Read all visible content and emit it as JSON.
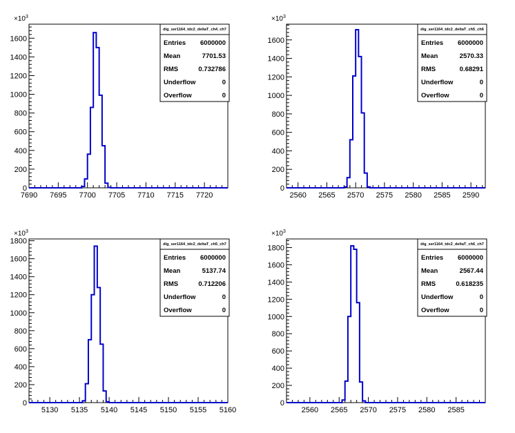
{
  "chart_data": [
    {
      "type": "bar",
      "title": "",
      "xlabel": "",
      "ylabel": "",
      "xlim": [
        7690,
        7724
      ],
      "xticks": [
        7690,
        7695,
        7700,
        7705,
        7710,
        7715,
        7720
      ],
      "ylim": [
        0,
        1750
      ],
      "yticks": [
        0,
        200,
        400,
        600,
        800,
        1000,
        1200,
        1400,
        1600
      ],
      "y_exponent": "3",
      "bin_width": 0.5,
      "bins": [
        7699.0,
        7699.5,
        7700.0,
        7700.5,
        7701.0,
        7701.5,
        7702.0,
        7702.5,
        7703.0,
        7703.5
      ],
      "values": [
        15,
        95,
        360,
        860,
        1660,
        1500,
        990,
        450,
        50,
        5
      ],
      "stats": {
        "name": "dig_ser1164_tdc2_deltaT_ch4_ch7",
        "rows": [
          {
            "label": "Entries",
            "value": "6000000"
          },
          {
            "label": "Mean",
            "value": "7701.53"
          },
          {
            "label": "RMS",
            "value": "0.732786"
          },
          {
            "label": "Underflow",
            "value": "0"
          },
          {
            "label": "Overflow",
            "value": "0"
          }
        ]
      }
    },
    {
      "type": "bar",
      "title": "",
      "xlabel": "",
      "ylabel": "",
      "xlim": [
        2558,
        2592.5
      ],
      "xticks": [
        2560,
        2565,
        2570,
        2575,
        2580,
        2585,
        2590
      ],
      "ylim": [
        0,
        1770
      ],
      "yticks": [
        0,
        200,
        400,
        600,
        800,
        1000,
        1200,
        1400,
        1600
      ],
      "y_exponent": "3",
      "bin_width": 0.5,
      "bins": [
        2568.0,
        2568.5,
        2569.0,
        2569.5,
        2570.0,
        2570.5,
        2571.0,
        2571.5,
        2572.0
      ],
      "values": [
        10,
        110,
        520,
        1210,
        1710,
        1420,
        810,
        160,
        10
      ],
      "stats": {
        "name": "dig_ser1164_tdc2_deltaT_ch5_ch6",
        "rows": [
          {
            "label": "Entries",
            "value": "6000000"
          },
          {
            "label": "Mean",
            "value": "2570.33"
          },
          {
            "label": "RMS",
            "value": "0.68291"
          },
          {
            "label": "Underflow",
            "value": "0"
          },
          {
            "label": "Overflow",
            "value": "0"
          }
        ]
      }
    },
    {
      "type": "bar",
      "title": "",
      "xlabel": "",
      "ylabel": "",
      "xlim": [
        5126.5,
        5160
      ],
      "xticks": [
        5130,
        5135,
        5140,
        5145,
        5150,
        5155,
        5160
      ],
      "ylim": [
        0,
        1820
      ],
      "yticks": [
        0,
        200,
        400,
        600,
        800,
        1000,
        1200,
        1400,
        1600,
        1800
      ],
      "y_exponent": "3",
      "bin_width": 0.5,
      "bins": [
        5135.5,
        5136.0,
        5136.5,
        5137.0,
        5137.5,
        5138.0,
        5138.5,
        5139.0,
        5139.5
      ],
      "values": [
        20,
        210,
        700,
        1200,
        1740,
        1280,
        650,
        130,
        10
      ],
      "stats": {
        "name": "dig_ser1164_tdc2_deltaT_ch5_ch7",
        "rows": [
          {
            "label": "Entries",
            "value": "6000000"
          },
          {
            "label": "Mean",
            "value": "5137.74"
          },
          {
            "label": "RMS",
            "value": "0.712206"
          },
          {
            "label": "Underflow",
            "value": "0"
          },
          {
            "label": "Overflow",
            "value": "0"
          }
        ]
      }
    },
    {
      "type": "bar",
      "title": "",
      "xlabel": "",
      "ylabel": "",
      "xlim": [
        2556,
        2590
      ],
      "xticks": [
        2560,
        2565,
        2570,
        2575,
        2580,
        2585
      ],
      "ylim": [
        0,
        1900
      ],
      "yticks": [
        0,
        200,
        400,
        600,
        800,
        1000,
        1200,
        1400,
        1600,
        1800
      ],
      "y_exponent": "3",
      "bin_width": 0.5,
      "bins": [
        2565.5,
        2566.0,
        2566.5,
        2567.0,
        2567.5,
        2568.0,
        2568.5,
        2569.0
      ],
      "values": [
        30,
        250,
        1000,
        1820,
        1780,
        1160,
        240,
        20
      ],
      "stats": {
        "name": "dig_ser1164_tdc2_deltaT_ch6_ch7",
        "rows": [
          {
            "label": "Entries",
            "value": "6000000"
          },
          {
            "label": "Mean",
            "value": "2567.44"
          },
          {
            "label": "RMS",
            "value": "0.618235"
          },
          {
            "label": "Underflow",
            "value": "0"
          },
          {
            "label": "Overflow",
            "value": "0"
          }
        ]
      }
    }
  ],
  "colors": {
    "histogram_line": "#0000cc",
    "frame": "#000000",
    "background": "#ffffff"
  }
}
